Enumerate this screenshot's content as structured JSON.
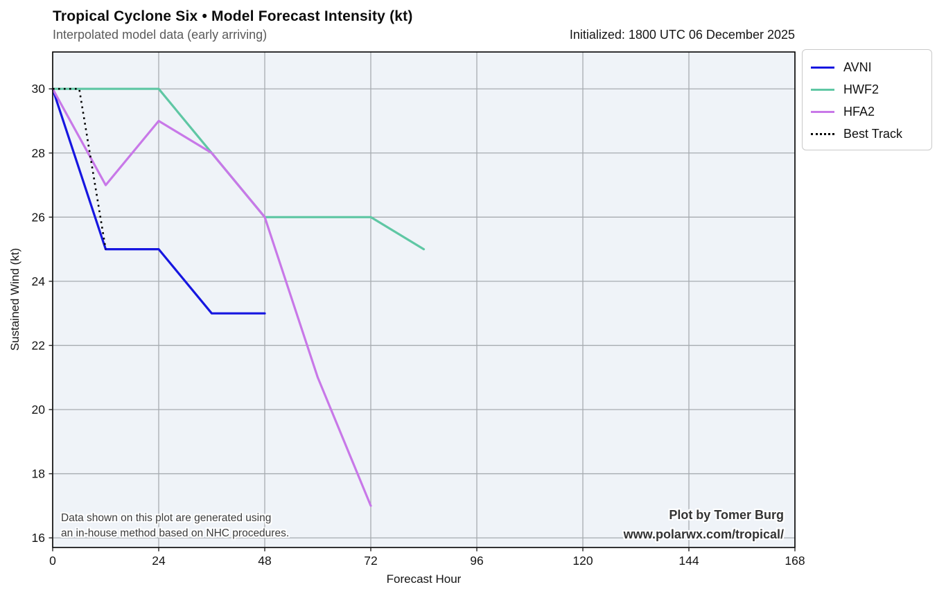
{
  "header": {
    "title": "Tropical Cyclone Six • Model Forecast Intensity (kt)",
    "subtitle": "Interpolated model data (early arriving)",
    "initialized": "Initialized: 1800 UTC 06 December 2025"
  },
  "annotation": {
    "line1": "Data shown on this plot are generated using",
    "line2": "an in-house method based on NHC procedures."
  },
  "credit": {
    "line1": "Plot by Tomer Burg",
    "line2": "www.polarwx.com/tropical/"
  },
  "colors": {
    "plot_background": "#eff3f8",
    "gridline": "#a6abb0",
    "spine": "#000000",
    "tick_label": "#141414",
    "avni": "#1616e0",
    "hwf2": "#5fc7a4",
    "hfa2": "#c878e8",
    "best_track": "#000000"
  },
  "chart_data": {
    "type": "line",
    "title": "Tropical Cyclone Six • Model Forecast Intensity (kt)",
    "subtitle": "Interpolated model data (early arriving)",
    "xlabel": "Forecast Hour",
    "ylabel": "Sustained Wind (kt)",
    "xlim": [
      0,
      168
    ],
    "ylim": [
      15.7,
      31.15
    ],
    "xticks": [
      0,
      24,
      48,
      72,
      96,
      120,
      144,
      168
    ],
    "yticks": [
      16,
      18,
      20,
      22,
      24,
      26,
      28,
      30
    ],
    "grid": true,
    "legend_position": "outside-top-right",
    "series": [
      {
        "name": "AVNI",
        "color": "#1616e0",
        "style": "solid",
        "points": [
          [
            0,
            30
          ],
          [
            12,
            25
          ],
          [
            24,
            25
          ],
          [
            36,
            23
          ],
          [
            48,
            23
          ]
        ]
      },
      {
        "name": "HWF2",
        "color": "#5fc7a4",
        "style": "solid",
        "points": [
          [
            0,
            30
          ],
          [
            12,
            30
          ],
          [
            24,
            30
          ],
          [
            36,
            28
          ],
          [
            48,
            26
          ],
          [
            60,
            26
          ],
          [
            72,
            26
          ],
          [
            84,
            25
          ]
        ]
      },
      {
        "name": "HFA2",
        "color": "#c878e8",
        "style": "solid",
        "points": [
          [
            0,
            30
          ],
          [
            12,
            27
          ],
          [
            24,
            29
          ],
          [
            36,
            28
          ],
          [
            48,
            26
          ],
          [
            60,
            21
          ],
          [
            72,
            17
          ]
        ]
      },
      {
        "name": "Best Track",
        "color": "#000000",
        "style": "dotted",
        "points": [
          [
            0,
            30
          ],
          [
            6,
            30
          ],
          [
            12,
            25
          ]
        ]
      }
    ]
  }
}
